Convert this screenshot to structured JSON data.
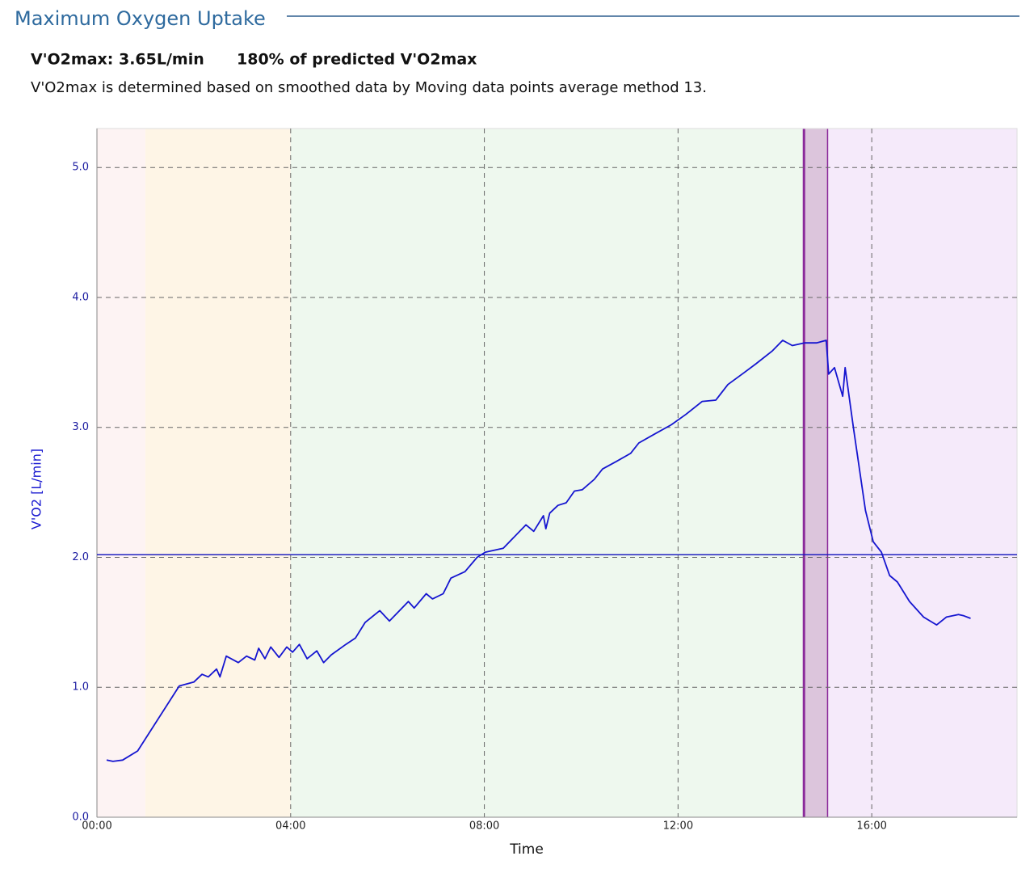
{
  "header": {
    "title": "Maximum Oxygen Uptake"
  },
  "summary": {
    "vo2max": "V'O2max: 3.65L/min",
    "predicted": "180% of predicted V'O2max",
    "note": "V'O2max is determined based on smoothed data by Moving data points average method 13."
  },
  "chart_data": {
    "type": "line",
    "x_label": "Time",
    "y_label": "V'O2 [L/min]",
    "xlim": [
      0,
      19
    ],
    "ylim": [
      0,
      5.3
    ],
    "xticks": [
      {
        "value": 0,
        "label": "00:00"
      },
      {
        "value": 4,
        "label": "04:00"
      },
      {
        "value": 8,
        "label": "08:00"
      },
      {
        "value": 12,
        "label": "12:00"
      },
      {
        "value": 16,
        "label": "16:00"
      }
    ],
    "yticks": [
      {
        "value": 0,
        "label": "0.0"
      },
      {
        "value": 1,
        "label": "1.0"
      },
      {
        "value": 2,
        "label": "2.0"
      },
      {
        "value": 3,
        "label": "3.0"
      },
      {
        "value": 4,
        "label": "4.0"
      },
      {
        "value": 5,
        "label": "5.0"
      }
    ],
    "grid": true,
    "color": "#1515d0",
    "zones": [
      {
        "start": 0,
        "end": 1.0,
        "color": "#fdf3f3"
      },
      {
        "start": 1.0,
        "end": 4.0,
        "color": "#fef5e6"
      },
      {
        "start": 4.0,
        "end": 14.6,
        "color": "#eef8ee"
      },
      {
        "start": 14.6,
        "end": 15.1,
        "color": "#dcc5dc",
        "border": "#8b2a9a"
      },
      {
        "start": 15.1,
        "end": 19,
        "color": "#f5eafa"
      }
    ],
    "reference_line": {
      "value": 2.02,
      "color": "#2020c0"
    },
    "x": [
      0.2,
      0.33,
      0.53,
      0.84,
      1.7,
      2.0,
      2.17,
      2.3,
      2.47,
      2.54,
      2.67,
      2.92,
      3.09,
      3.26,
      3.34,
      3.47,
      3.59,
      3.76,
      3.92,
      4.04,
      4.18,
      4.34,
      4.54,
      4.68,
      4.84,
      5.14,
      5.34,
      5.54,
      5.84,
      6.04,
      6.43,
      6.55,
      6.8,
      6.93,
      7.15,
      7.31,
      7.6,
      7.85,
      8.02,
      8.39,
      8.86,
      9.02,
      9.22,
      9.27,
      9.35,
      9.52,
      9.69,
      9.86,
      10.02,
      10.27,
      10.44,
      10.69,
      11.02,
      11.19,
      11.52,
      11.86,
      12.16,
      12.5,
      12.78,
      13.03,
      13.36,
      13.61,
      13.95,
      14.16,
      14.36,
      14.61,
      14.86,
      15.06,
      15.11,
      15.23,
      15.4,
      15.45,
      15.62,
      15.87,
      16.03,
      16.2,
      16.37,
      16.53,
      16.78,
      17.07,
      17.34,
      17.54,
      17.79,
      17.9,
      18.04
    ],
    "values": [
      0.44,
      0.43,
      0.44,
      0.51,
      1.01,
      1.04,
      1.1,
      1.08,
      1.14,
      1.08,
      1.24,
      1.19,
      1.24,
      1.21,
      1.3,
      1.22,
      1.31,
      1.23,
      1.31,
      1.27,
      1.33,
      1.22,
      1.28,
      1.19,
      1.25,
      1.33,
      1.38,
      1.5,
      1.59,
      1.51,
      1.66,
      1.61,
      1.72,
      1.68,
      1.72,
      1.84,
      1.89,
      2.0,
      2.04,
      2.07,
      2.25,
      2.2,
      2.32,
      2.22,
      2.34,
      2.4,
      2.42,
      2.51,
      2.52,
      2.6,
      2.68,
      2.73,
      2.8,
      2.88,
      2.95,
      3.02,
      3.1,
      3.2,
      3.21,
      3.33,
      3.42,
      3.49,
      3.59,
      3.67,
      3.63,
      3.65,
      3.65,
      3.67,
      3.41,
      3.46,
      3.24,
      3.46,
      3.0,
      2.36,
      2.12,
      2.04,
      1.86,
      1.81,
      1.66,
      1.54,
      1.48,
      1.54,
      1.56,
      1.55,
      1.53
    ]
  }
}
